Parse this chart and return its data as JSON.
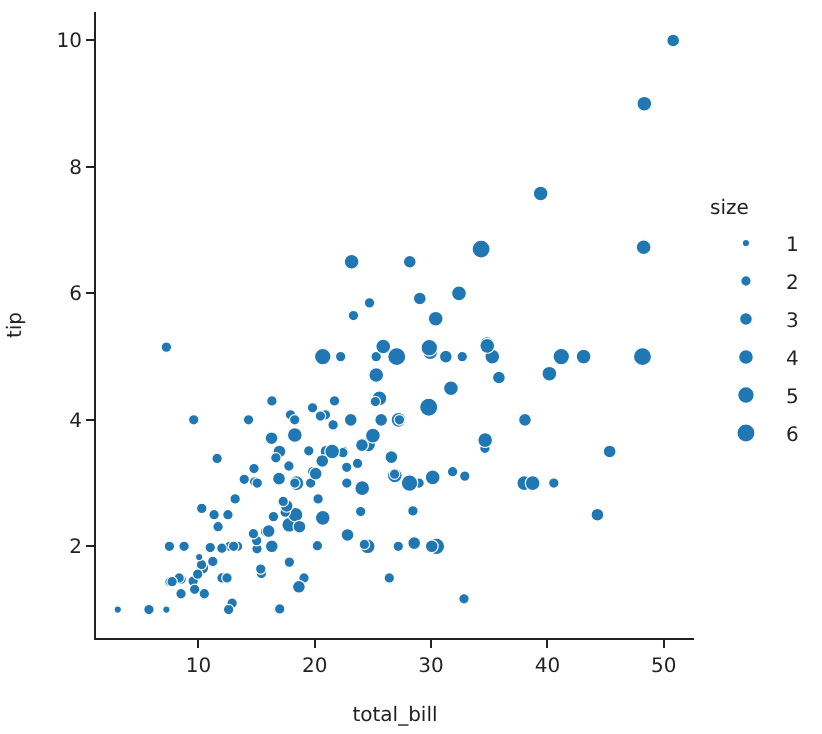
{
  "chart_data": {
    "type": "bubble",
    "xlabel": "total_bill",
    "ylabel": "tip",
    "legend_title": "size",
    "marker": "circle",
    "xlim": [
      1.2,
      52.6
    ],
    "xticks": [
      10,
      20,
      30,
      40,
      50
    ],
    "ylim": [
      0.55,
      10.45
    ],
    "yticks": [
      2,
      4,
      6,
      8,
      10
    ],
    "size_legend": [
      1,
      2,
      3,
      4,
      5,
      6
    ],
    "series": [
      {
        "color": "#1f77b4",
        "x": [
          16.99,
          10.34,
          21.01,
          23.68,
          24.59,
          25.29,
          8.77,
          26.88,
          15.04,
          14.78,
          10.27,
          35.26,
          15.42,
          18.43,
          14.83,
          21.58,
          16.29,
          16.97,
          20.65,
          17.92,
          20.29,
          15.77,
          39.42,
          19.82,
          17.81,
          13.37,
          12.69,
          21.7,
          19.65,
          9.55,
          18.35,
          15.06,
          20.69,
          17.78,
          24.06,
          16.31,
          16.93,
          18.69,
          31.27,
          16.04,
          17.46,
          13.94,
          9.68,
          30.4,
          18.29,
          22.23,
          32.4,
          28.55,
          12.54,
          10.29,
          34.81,
          9.94,
          25.56,
          19.49,
          38.01,
          26.41,
          11.24,
          48.27,
          11.02,
          18.29,
          17.59,
          20.08,
          16.45,
          3.07,
          20.23,
          15.01,
          12.02,
          26.86,
          25.28,
          14.73,
          10.51,
          27.2,
          22.76,
          17.29,
          16.66,
          10.07,
          32.68,
          34.83,
          13.03,
          18.28,
          24.71,
          28.97,
          22.49,
          5.75,
          16.32,
          22.75,
          40.17,
          27.28,
          12.03,
          12.46,
          11.35,
          44.3,
          22.42,
          20.92,
          15.36,
          20.49,
          25.21,
          14.31,
          7.25,
          38.07,
          23.95,
          25.71,
          29.93,
          24.08,
          11.69,
          29.8,
          8.52,
          22.82,
          19.08,
          8.51,
          13.16,
          34.3,
          41.19,
          27.05,
          8.35,
          18.64,
          7.51,
          24.55,
          29.85,
          48.17,
          25.0,
          21.5,
          31.71,
          50.81,
          7.25,
          31.85,
          32.9,
          9.6,
          34.63,
          34.65,
          23.33,
          45.35,
          23.17,
          40.55,
          20.69,
          30.46,
          23.1,
          19.81,
          28.44,
          7.56,
          43.11,
          26.59,
          38.73,
          24.27,
          30.06,
          25.89,
          48.33,
          28.17,
          12.9,
          28.15,
          7.74,
          30.14,
          11.61,
          12.6,
          32.83,
          35.83,
          29.03,
          27.18,
          17.82
        ],
        "values": [
          1.01,
          1.66,
          3.5,
          3.31,
          3.61,
          4.71,
          2.0,
          3.12,
          1.96,
          3.23,
          1.71,
          5.0,
          1.57,
          3.0,
          3.02,
          3.92,
          3.71,
          3.5,
          3.35,
          4.08,
          2.75,
          2.23,
          7.58,
          3.18,
          2.34,
          2.0,
          2.0,
          4.3,
          3.0,
          1.45,
          2.5,
          3.0,
          2.45,
          3.27,
          3.6,
          2.0,
          3.07,
          2.31,
          5.0,
          2.24,
          2.54,
          3.06,
          1.32,
          5.6,
          3.0,
          5.0,
          6.0,
          2.05,
          2.5,
          2.6,
          5.2,
          1.56,
          4.34,
          3.51,
          3.0,
          1.5,
          1.76,
          6.73,
          1.98,
          3.76,
          2.64,
          3.15,
          2.47,
          1.0,
          2.01,
          2.09,
          1.97,
          3.14,
          5.0,
          2.2,
          1.25,
          4.0,
          3.0,
          2.71,
          3.4,
          1.83,
          5.0,
          5.17,
          2.0,
          4.0,
          5.85,
          3.0,
          3.5,
          1.0,
          4.3,
          3.25,
          4.73,
          4.0,
          1.5,
          1.5,
          2.5,
          2.5,
          3.48,
          4.08,
          1.64,
          4.06,
          4.29,
          4.0,
          1.0,
          4.0,
          2.55,
          4.0,
          5.07,
          2.92,
          2.31,
          4.2,
          1.48,
          2.18,
          1.5,
          1.25,
          2.75,
          6.7,
          5.0,
          5.0,
          1.5,
          1.36,
          2.0,
          2.0,
          5.14,
          5.0,
          3.75,
          3.5,
          4.5,
          10.0,
          5.15,
          3.18,
          3.11,
          4.0,
          3.55,
          3.68,
          5.65,
          3.5,
          6.5,
          3.0,
          5.0,
          2.0,
          4.0,
          4.19,
          2.56,
          1.44,
          5.0,
          3.41,
          3.0,
          2.03,
          2.0,
          5.16,
          9.0,
          6.5,
          1.1,
          3.0,
          1.44,
          3.09,
          3.39,
          1.0,
          1.17,
          4.67,
          5.92,
          2.0,
          1.75
        ],
        "sizes": [
          2,
          3,
          3,
          2,
          4,
          4,
          2,
          4,
          2,
          2,
          2,
          4,
          2,
          4,
          2,
          2,
          3,
          3,
          3,
          2,
          2,
          2,
          4,
          2,
          4,
          2,
          2,
          2,
          2,
          2,
          4,
          2,
          4,
          2,
          3,
          3,
          3,
          3,
          3,
          3,
          2,
          2,
          2,
          4,
          2,
          2,
          4,
          3,
          2,
          2,
          4,
          2,
          4,
          2,
          4,
          2,
          2,
          4,
          2,
          4,
          3,
          3,
          2,
          1,
          2,
          2,
          2,
          2,
          2,
          2,
          2,
          4,
          2,
          2,
          2,
          1,
          2,
          4,
          2,
          2,
          2,
          2,
          2,
          2,
          2,
          2,
          4,
          2,
          2,
          2,
          2,
          3,
          2,
          2,
          2,
          2,
          2,
          2,
          1,
          3,
          2,
          3,
          4,
          4,
          2,
          6,
          2,
          3,
          2,
          2,
          2,
          6,
          5,
          6,
          2,
          3,
          2,
          4,
          5,
          6,
          4,
          4,
          4,
          3,
          2,
          2,
          2,
          2,
          2,
          4,
          2,
          3,
          4,
          2,
          5,
          5,
          3,
          2,
          2,
          2,
          4,
          3,
          4,
          2,
          3,
          4,
          4,
          3,
          2,
          5,
          2,
          4,
          2,
          2,
          2,
          3,
          3,
          2,
          2
        ]
      }
    ]
  }
}
